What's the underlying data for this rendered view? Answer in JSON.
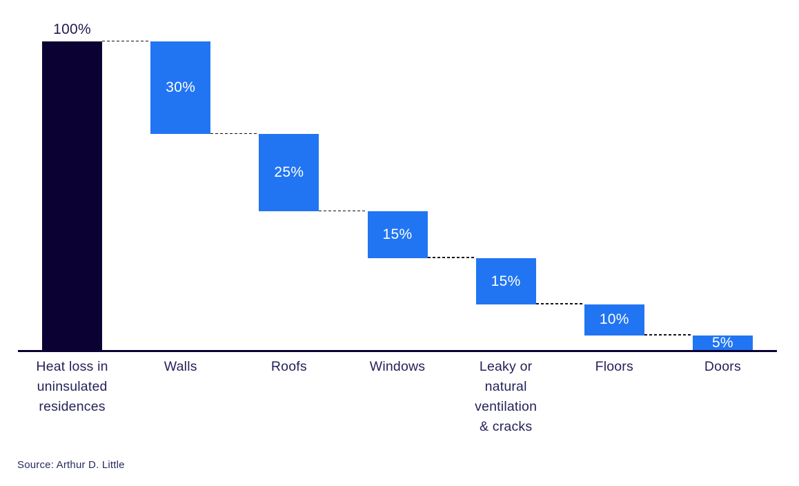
{
  "chart_data": {
    "type": "bar",
    "subtype": "waterfall",
    "title": "",
    "xlabel": "",
    "ylabel": "",
    "ylim": [
      0,
      100
    ],
    "grid": false,
    "legend": false,
    "categories": [
      "Heat loss in\nuninsulated\nresidences",
      "Walls",
      "Roofs",
      "Windows",
      "Leaky or\nnatural\nventilation\n& cracks",
      "Floors",
      "Doors"
    ],
    "values": [
      100,
      30,
      25,
      15,
      15,
      10,
      5
    ],
    "value_labels": [
      "100%",
      "30%",
      "25%",
      "15%",
      "15%",
      "10%",
      "5%"
    ],
    "bar_roles": [
      "total",
      "step",
      "step",
      "step",
      "step",
      "step",
      "step"
    ],
    "value_label_position": [
      "above",
      "inside",
      "inside",
      "inside",
      "inside",
      "inside",
      "inside"
    ],
    "cumulative_top": [
      100,
      100,
      70,
      45,
      30,
      15,
      5
    ],
    "cumulative_bottom": [
      0,
      70,
      45,
      30,
      15,
      5,
      0
    ],
    "colors": {
      "total": "#0B0133",
      "step": "#2175F2",
      "value_label_inside": "#FFFFFF",
      "value_label_outside": "#1F1B4E",
      "category_label": "#252258",
      "axis_line": "#0B0133",
      "connector": "#101018",
      "source_text": "#252A5E"
    }
  },
  "source": {
    "label": "Source: Arthur D. Little"
  }
}
